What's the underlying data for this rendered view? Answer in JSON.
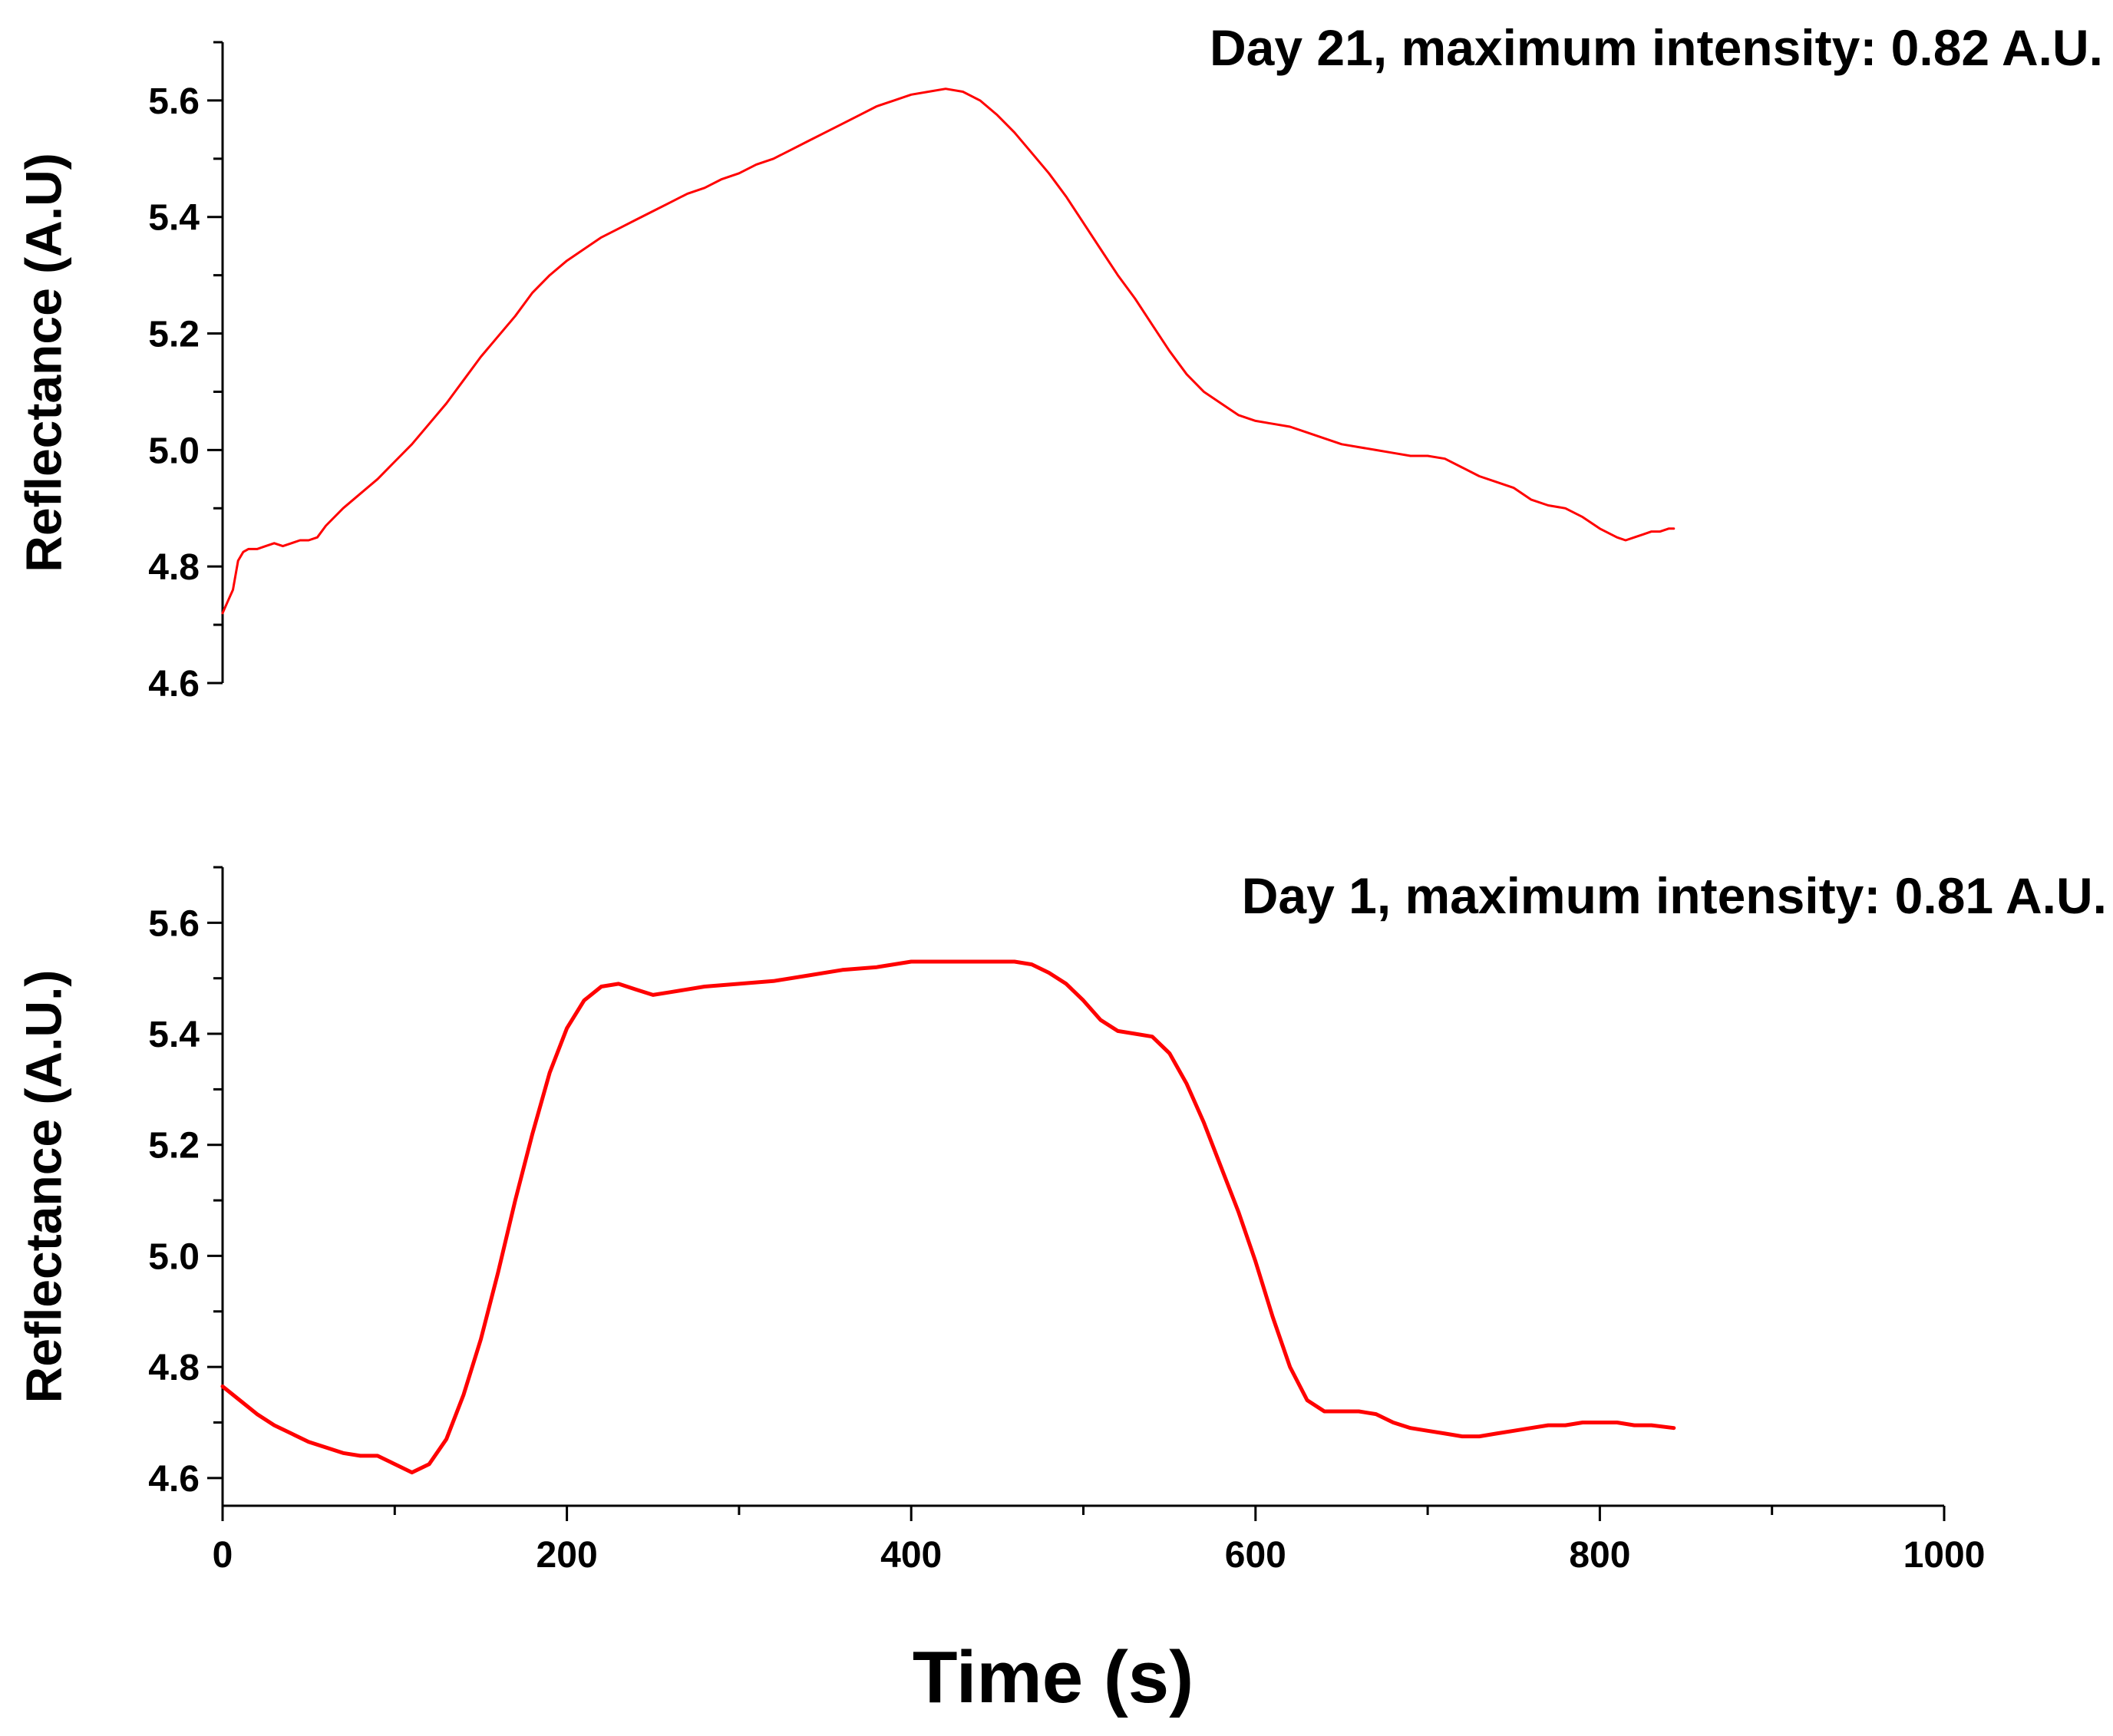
{
  "figure_xlabel": "Time (s)",
  "chart_data": [
    {
      "type": "line",
      "title": "Day 21, maximum intensity: 0.82 A.U.",
      "xlabel": "Time (s)",
      "ylabel": "Reflectance (A.U)",
      "xlim": [
        0,
        1000
      ],
      "ylim": [
        4.6,
        5.7
      ],
      "xticks": [],
      "yticks": [
        4.6,
        4.8,
        5.0,
        5.2,
        5.4,
        5.6
      ],
      "ytick_labels": [
        "4.6",
        "4.8",
        "5.0",
        "5.2",
        "5.4",
        "5.6"
      ],
      "grid": false,
      "series": [
        {
          "name": "Day 21",
          "color": "#ff0000",
          "x": [
            0,
            3,
            6,
            9,
            12,
            15,
            20,
            25,
            30,
            35,
            40,
            45,
            50,
            55,
            60,
            70,
            80,
            90,
            100,
            110,
            120,
            130,
            140,
            150,
            160,
            170,
            180,
            190,
            200,
            210,
            220,
            230,
            240,
            250,
            260,
            270,
            280,
            290,
            300,
            310,
            320,
            330,
            340,
            350,
            360,
            370,
            380,
            390,
            400,
            410,
            420,
            430,
            440,
            450,
            460,
            470,
            480,
            490,
            500,
            510,
            520,
            530,
            540,
            550,
            560,
            570,
            580,
            590,
            600,
            610,
            620,
            630,
            640,
            650,
            660,
            670,
            680,
            690,
            700,
            710,
            720,
            730,
            740,
            750,
            760,
            770,
            780,
            790,
            800,
            810,
            815,
            820,
            825,
            830,
            835,
            840,
            843
          ],
          "y": [
            4.72,
            4.74,
            4.76,
            4.81,
            4.825,
            4.83,
            4.83,
            4.835,
            4.84,
            4.835,
            4.84,
            4.845,
            4.845,
            4.85,
            4.87,
            4.9,
            4.925,
            4.95,
            4.98,
            5.01,
            5.045,
            5.08,
            5.12,
            5.16,
            5.195,
            5.23,
            5.27,
            5.3,
            5.325,
            5.345,
            5.365,
            5.38,
            5.395,
            5.41,
            5.425,
            5.44,
            5.45,
            5.465,
            5.475,
            5.49,
            5.5,
            5.515,
            5.53,
            5.545,
            5.56,
            5.575,
            5.59,
            5.6,
            5.61,
            5.615,
            5.62,
            5.615,
            5.6,
            5.575,
            5.545,
            5.51,
            5.475,
            5.435,
            5.39,
            5.345,
            5.3,
            5.26,
            5.215,
            5.17,
            5.13,
            5.1,
            5.08,
            5.06,
            5.05,
            5.045,
            5.04,
            5.03,
            5.02,
            5.01,
            5.005,
            5.0,
            4.995,
            4.99,
            4.99,
            4.985,
            4.97,
            4.955,
            4.945,
            4.935,
            4.915,
            4.905,
            4.9,
            4.885,
            4.865,
            4.85,
            4.845,
            4.85,
            4.855,
            4.86,
            4.86,
            4.865,
            4.865
          ]
        }
      ]
    },
    {
      "type": "line",
      "title": "Day 1, maximum intensity: 0.81 A.U.",
      "xlabel": "Time (s)",
      "ylabel": "Reflectance (A.U.)",
      "xlim": [
        0,
        1000
      ],
      "ylim": [
        4.55,
        5.7
      ],
      "xticks": [
        0,
        200,
        400,
        600,
        800,
        1000
      ],
      "xtick_labels": [
        "0",
        "200",
        "400",
        "600",
        "800",
        "1000"
      ],
      "yticks": [
        4.6,
        4.8,
        5.0,
        5.2,
        5.4,
        5.6
      ],
      "ytick_labels": [
        "4.6",
        "4.8",
        "5.0",
        "5.2",
        "5.4",
        "5.6"
      ],
      "grid": false,
      "series": [
        {
          "name": "Day 1",
          "color": "#ff0000",
          "x": [
            0,
            10,
            20,
            30,
            40,
            50,
            60,
            70,
            80,
            90,
            100,
            110,
            120,
            130,
            140,
            150,
            160,
            170,
            180,
            190,
            200,
            210,
            220,
            230,
            240,
            250,
            260,
            280,
            300,
            320,
            340,
            360,
            380,
            400,
            420,
            440,
            460,
            470,
            480,
            490,
            500,
            510,
            520,
            530,
            540,
            550,
            560,
            570,
            580,
            590,
            600,
            610,
            620,
            630,
            640,
            650,
            660,
            670,
            680,
            690,
            700,
            710,
            720,
            730,
            740,
            750,
            760,
            770,
            780,
            790,
            800,
            810,
            820,
            830,
            843
          ],
          "y": [
            4.765,
            4.74,
            4.715,
            4.695,
            4.68,
            4.665,
            4.655,
            4.645,
            4.64,
            4.64,
            4.625,
            4.61,
            4.625,
            4.67,
            4.75,
            4.85,
            4.97,
            5.1,
            5.22,
            5.33,
            5.41,
            5.46,
            5.485,
            5.49,
            5.48,
            5.47,
            5.475,
            5.485,
            5.49,
            5.495,
            5.505,
            5.515,
            5.52,
            5.53,
            5.53,
            5.53,
            5.53,
            5.525,
            5.51,
            5.49,
            5.46,
            5.425,
            5.405,
            5.4,
            5.395,
            5.365,
            5.31,
            5.24,
            5.16,
            5.08,
            4.99,
            4.89,
            4.8,
            4.74,
            4.72,
            4.72,
            4.72,
            4.715,
            4.7,
            4.69,
            4.685,
            4.68,
            4.675,
            4.675,
            4.68,
            4.685,
            4.69,
            4.695,
            4.695,
            4.7,
            4.7,
            4.7,
            4.695,
            4.695,
            4.69
          ]
        }
      ]
    }
  ]
}
